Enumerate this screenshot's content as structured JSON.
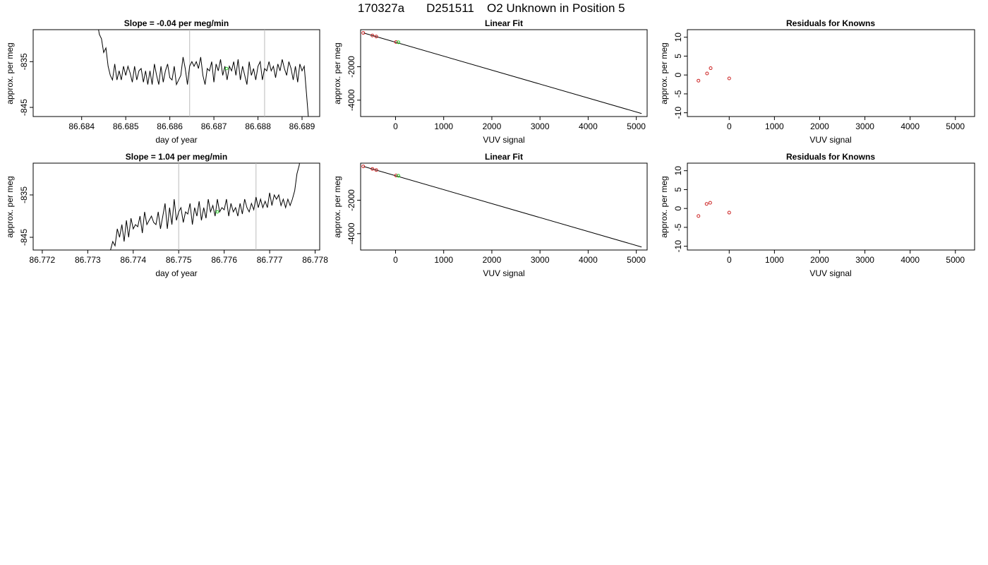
{
  "figure": {
    "title_parts": [
      "170327a",
      "D251511",
      "O2 Unknown in Position  5"
    ]
  },
  "chart_data": [
    {
      "type": "line",
      "title": "Slope =  -0.04  per meg/min",
      "xlabel": "day of year",
      "ylabel": "approx. per meg",
      "xlim": [
        86.6829,
        86.6894
      ],
      "ylim": [
        -847,
        -828
      ],
      "xticks": [
        "86.684",
        "86.685",
        "86.686",
        "86.687",
        "86.688",
        "86.689"
      ],
      "xtick_values": [
        86.684,
        86.685,
        86.686,
        86.687,
        86.688,
        86.689
      ],
      "yticks": [
        "-835",
        "-845"
      ],
      "ytick_values": [
        -835,
        -845
      ],
      "vlines": [
        86.68645,
        86.68815
      ],
      "vline_color": "#bbbbbb",
      "line_color": "#000000",
      "marker_color": "#22cc22",
      "marker": [
        86.68729,
        -836.5
      ],
      "series": [
        {
          "x": [
            86.68435,
            86.6844,
            86.68445,
            86.6845,
            86.68455,
            86.6846,
            86.68465,
            86.6847,
            86.68475,
            86.6848,
            86.68485,
            86.6849,
            86.68495,
            86.685,
            86.68505,
            86.6851,
            86.68515,
            86.6852,
            86.68525,
            86.6853,
            86.68535,
            86.6854,
            86.68545,
            86.6855,
            86.68555,
            86.6856,
            86.68565,
            86.6857,
            86.68575,
            86.6858,
            86.68585,
            86.6859,
            86.68595,
            86.686,
            86.68605,
            86.6861,
            86.68615,
            86.6862,
            86.68625,
            86.6863,
            86.68635,
            86.6864,
            86.68645,
            86.6865,
            86.68655,
            86.6866,
            86.68665,
            86.6867,
            86.68675,
            86.6868,
            86.68685,
            86.6869,
            86.68695,
            86.687,
            86.68705,
            86.6871,
            86.68715,
            86.6872,
            86.68725,
            86.6873,
            86.68735,
            86.6874,
            86.68745,
            86.6875,
            86.68755,
            86.6876,
            86.68765,
            86.6877,
            86.68775,
            86.6878,
            86.68785,
            86.6879,
            86.68795,
            86.688,
            86.68805,
            86.6881,
            86.68815,
            86.6882,
            86.68825,
            86.6883,
            86.68835,
            86.6884,
            86.68845,
            86.6885,
            86.68855,
            86.6886,
            86.68865,
            86.6887,
            86.68875,
            86.6888,
            86.68885,
            86.6889,
            86.68895,
            86.689,
            86.68905,
            86.6891,
            86.68915
          ],
          "y": [
            -826,
            -829,
            -830,
            -833,
            -832,
            -836,
            -838,
            -839,
            -835.5,
            -839,
            -837,
            -839,
            -836,
            -838,
            -836,
            -837.5,
            -839.5,
            -836,
            -839,
            -837,
            -836.5,
            -839.5,
            -837,
            -840,
            -837,
            -840,
            -835.5,
            -838,
            -840,
            -836,
            -839.5,
            -837,
            -835.5,
            -838.5,
            -839,
            -836,
            -840,
            -839,
            -838,
            -834,
            -836.5,
            -840,
            -836,
            -835,
            -836,
            -835,
            -836.5,
            -834,
            -838,
            -840,
            -836.5,
            -837,
            -835,
            -839.5,
            -835.5,
            -837,
            -834.5,
            -838,
            -836,
            -839,
            -836,
            -837,
            -835,
            -838,
            -834.5,
            -839,
            -836,
            -838,
            -840,
            -835,
            -838,
            -836.5,
            -839,
            -836,
            -835,
            -839,
            -836.5,
            -837,
            -835,
            -837,
            -836,
            -838.5,
            -835.5,
            -837,
            -834.5,
            -836.5,
            -838,
            -835,
            -836.5,
            -839,
            -836,
            -839.5,
            -835.5,
            -837,
            -836,
            -842,
            -848
          ]
        }
      ]
    },
    {
      "type": "scatter",
      "title": "Linear Fit",
      "xlabel": "VUV signal",
      "ylabel": "approx. per meg",
      "xlim": [
        -725,
        5225
      ],
      "ylim": [
        -4980,
        220
      ],
      "xticks": [
        "0",
        "1000",
        "2000",
        "3000",
        "4000",
        "5000"
      ],
      "xtick_values": [
        0,
        1000,
        2000,
        3000,
        4000,
        5000
      ],
      "yticks": [
        "-2000",
        "-4000"
      ],
      "ytick_values": [
        -2000,
        -4000
      ],
      "fit_line": [
        [
          -660,
          20
        ],
        [
          5110,
          -4800
        ]
      ],
      "known_points": {
        "x": [
          -670,
          -480,
          -400,
          10
        ],
        "y": [
          23,
          -128,
          -192,
          -518
        ]
      },
      "unknown_points": {
        "x": [
          60
        ],
        "y": [
          -537
        ]
      },
      "known_color": "#cc2222",
      "unknown_color": "#22cc22"
    },
    {
      "type": "scatter",
      "title": "Residuals for Knowns",
      "xlabel": "VUV signal",
      "ylabel": "approx. per meg",
      "xlim": [
        -925,
        5425
      ],
      "ylim": [
        -11,
        12
      ],
      "xticks": [
        "0",
        "1000",
        "2000",
        "3000",
        "4000",
        "5000"
      ],
      "xtick_values": [
        0,
        1000,
        2000,
        3000,
        4000,
        5000
      ],
      "yticks": [
        "10",
        "5",
        "0",
        "-5",
        "-10"
      ],
      "ytick_values": [
        10,
        5,
        0,
        -5,
        -10
      ],
      "points": {
        "x": [
          -680,
          -490,
          -410,
          0
        ],
        "y": [
          -1.5,
          0.4,
          1.8,
          -0.9
        ]
      },
      "point_color": "#cc2222"
    },
    {
      "type": "line",
      "title": "Slope =  1.04  per meg/min",
      "xlabel": "day of year",
      "ylabel": "approx. per meg",
      "xlim": [
        86.7718,
        86.7781
      ],
      "ylim": [
        -848,
        -827.5
      ],
      "xticks": [
        "86.772",
        "86.773",
        "86.774",
        "86.775",
        "86.776",
        "86.777",
        "86.778"
      ],
      "xtick_values": [
        86.772,
        86.773,
        86.774,
        86.775,
        86.776,
        86.777,
        86.778
      ],
      "yticks": [
        "-835",
        "-845"
      ],
      "ytick_values": [
        -835,
        -845
      ],
      "vlines": [
        86.775,
        86.7767
      ],
      "vline_color": "#bbbbbb",
      "line_color": "#000000",
      "marker_color": "#22cc22",
      "marker": [
        86.77585,
        -839
      ],
      "series": [
        {
          "x": [
            86.7735,
            86.77355,
            86.7736,
            86.77365,
            86.7737,
            86.77375,
            86.7738,
            86.77385,
            86.7739,
            86.77395,
            86.774,
            86.77405,
            86.7741,
            86.77415,
            86.7742,
            86.77425,
            86.7743,
            86.77435,
            86.7744,
            86.77445,
            86.7745,
            86.77455,
            86.7746,
            86.77465,
            86.7747,
            86.77475,
            86.7748,
            86.77485,
            86.7749,
            86.77495,
            86.775,
            86.77505,
            86.7751,
            86.77515,
            86.7752,
            86.77525,
            86.7753,
            86.77535,
            86.7754,
            86.77545,
            86.7755,
            86.77555,
            86.7756,
            86.77565,
            86.7757,
            86.77575,
            86.7758,
            86.77585,
            86.7759,
            86.77595,
            86.776,
            86.77605,
            86.7761,
            86.77615,
            86.7762,
            86.77625,
            86.7763,
            86.77635,
            86.7764,
            86.77645,
            86.7765,
            86.77655,
            86.7766,
            86.77665,
            86.7767,
            86.77675,
            86.7768,
            86.77685,
            86.7769,
            86.77695,
            86.777,
            86.77705,
            86.7771,
            86.77715,
            86.7772,
            86.77725,
            86.7773,
            86.77735,
            86.7774,
            86.77745,
            86.7775,
            86.77755,
            86.7776,
            86.77765,
            86.7777
          ],
          "y": [
            -848,
            -846,
            -847,
            -843,
            -845,
            -842,
            -846,
            -841,
            -845,
            -840.5,
            -843,
            -842,
            -842.5,
            -840,
            -844,
            -839,
            -842,
            -841,
            -840,
            -841.5,
            -842,
            -839,
            -843,
            -840,
            -837,
            -843,
            -838,
            -842,
            -836,
            -841,
            -839,
            -838,
            -841.5,
            -839,
            -839.5,
            -837,
            -842,
            -838,
            -840,
            -836.5,
            -841,
            -838,
            -840.5,
            -836,
            -839,
            -837.5,
            -840,
            -836,
            -839,
            -838,
            -838.5,
            -836,
            -840,
            -837,
            -839,
            -838,
            -840,
            -837,
            -839.5,
            -836,
            -838,
            -839,
            -837,
            -838.5,
            -835.5,
            -838,
            -836,
            -838,
            -836.5,
            -838,
            -834.5,
            -837.5,
            -835,
            -836,
            -835,
            -837.5,
            -836,
            -838,
            -836,
            -837.5,
            -836,
            -834,
            -830,
            -828,
            -824
          ]
        }
      ]
    },
    {
      "type": "scatter",
      "title": "Linear Fit",
      "xlabel": "VUV signal",
      "ylabel": "approx. per meg",
      "xlim": [
        -725,
        5225
      ],
      "ylim": [
        -4980,
        220
      ],
      "xticks": [
        "0",
        "1000",
        "2000",
        "3000",
        "4000",
        "5000"
      ],
      "xtick_values": [
        0,
        1000,
        2000,
        3000,
        4000,
        5000
      ],
      "yticks": [
        "-2000",
        "-4000"
      ],
      "ytick_values": [
        -2000,
        -4000
      ],
      "fit_line": [
        [
          -660,
          20
        ],
        [
          5110,
          -4800
        ]
      ],
      "known_points": {
        "x": [
          -670,
          -480,
          -400,
          10
        ],
        "y": [
          23,
          -128,
          -192,
          -518
        ]
      },
      "unknown_points": {
        "x": [
          60
        ],
        "y": [
          -537
        ]
      },
      "known_color": "#cc2222",
      "unknown_color": "#22cc22"
    },
    {
      "type": "scatter",
      "title": "Residuals for Knowns",
      "xlabel": "VUV signal",
      "ylabel": "approx. per meg",
      "xlim": [
        -925,
        5425
      ],
      "ylim": [
        -11,
        12
      ],
      "xticks": [
        "0",
        "1000",
        "2000",
        "3000",
        "4000",
        "5000"
      ],
      "xtick_values": [
        0,
        1000,
        2000,
        3000,
        4000,
        5000
      ],
      "yticks": [
        "10",
        "5",
        "0",
        "-5",
        "-10"
      ],
      "ytick_values": [
        10,
        5,
        0,
        -5,
        -10
      ],
      "points": {
        "x": [
          -680,
          -500,
          -420,
          0
        ],
        "y": [
          -2.0,
          1.2,
          1.5,
          -1.1
        ]
      },
      "point_color": "#cc2222"
    }
  ]
}
